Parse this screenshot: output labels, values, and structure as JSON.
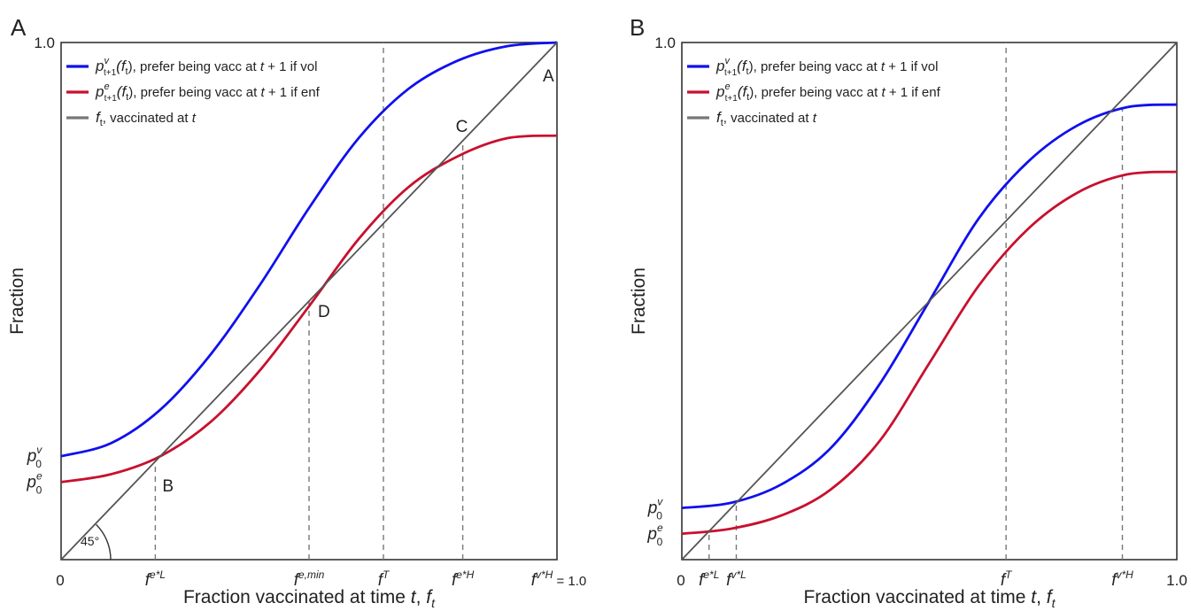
{
  "figure": {
    "panels": [
      "A",
      "B"
    ]
  },
  "colors": {
    "voluntary": "#1010ee",
    "enforced": "#c8102e",
    "diagonal": "#555555",
    "dashed": "#777777",
    "axis": "#333333"
  },
  "chart_data": [
    {
      "panel": "A",
      "type": "line",
      "xlabel": "Fraction vaccinated at time t, f_t",
      "ylabel": "Fraction",
      "xlim": [
        0,
        1
      ],
      "ylim": [
        0,
        1
      ],
      "y_top_tick": "1.0",
      "x_zero_tick": "0",
      "legend_position": "top-left",
      "series": [
        {
          "name": "p^v_{t+1}(f_t), prefer being vacc at t + 1 if vol",
          "key": "vol",
          "x": [
            0,
            0.1,
            0.2,
            0.3,
            0.4,
            0.5,
            0.6,
            0.7,
            0.8,
            0.9,
            1.0
          ],
          "y": [
            0.2,
            0.225,
            0.29,
            0.395,
            0.53,
            0.68,
            0.815,
            0.91,
            0.965,
            0.993,
            1.0
          ]
        },
        {
          "name": "p^e_{t+1}(f_t), prefer being vacc at t + 1 if enf",
          "key": "enf",
          "x": [
            0,
            0.1,
            0.2,
            0.3,
            0.4,
            0.5,
            0.6,
            0.7,
            0.8,
            0.9,
            1.0
          ],
          "y": [
            0.15,
            0.165,
            0.2,
            0.265,
            0.365,
            0.49,
            0.62,
            0.72,
            0.78,
            0.815,
            0.82
          ]
        },
        {
          "name": "f_t, vaccinated at t",
          "key": "diag",
          "x": [
            0,
            1
          ],
          "y": [
            0,
            1
          ]
        }
      ],
      "legend": [
        {
          "sym": "p",
          "sup": "v",
          "sub": "t+1",
          "arg": "(f",
          "argsub": "t",
          "close": "), prefer being vacc at ",
          "t1": "t",
          "rest": " + 1 if vol"
        },
        {
          "sym": "p",
          "sup": "e",
          "sub": "t+1",
          "arg": "(f",
          "argsub": "t",
          "close": "), prefer being vacc at ",
          "t1": "t",
          "rest": " + 1 if enf"
        },
        {
          "sym": "f",
          "sub": "t",
          "text": ", vaccinated at ",
          "t1": "t"
        }
      ],
      "vlines": [
        {
          "x": 0.19,
          "label": "f",
          "sup": "e*L"
        },
        {
          "x": 0.5,
          "label": "f",
          "sup": "e,min"
        },
        {
          "x": 0.65,
          "label": "f",
          "sup": "T"
        },
        {
          "x": 0.81,
          "label": "f",
          "sup": "e*H"
        }
      ],
      "right_tick": {
        "label": "f",
        "sup": "v*H",
        "suffix": "= 1.0"
      },
      "y_markers": [
        {
          "y": 0.2,
          "sym": "p",
          "sup": "v",
          "sub": "0"
        },
        {
          "y": 0.15,
          "sym": "p",
          "sup": "e",
          "sub": "0"
        }
      ],
      "points": [
        {
          "label": "A",
          "x": 1.0,
          "y": 1.0
        },
        {
          "label": "B",
          "x": 0.19,
          "y": 0.19
        },
        {
          "label": "C",
          "x": 0.81,
          "y": 0.81
        },
        {
          "label": "D",
          "x": 0.5,
          "y": 0.5
        }
      ],
      "angle_label": "45°"
    },
    {
      "panel": "B",
      "type": "line",
      "xlabel": "Fraction vaccinated at time t, f_t",
      "ylabel": "Fraction",
      "xlim": [
        0,
        1
      ],
      "ylim": [
        0,
        1
      ],
      "y_top_tick": "1.0",
      "x_zero_tick": "0",
      "x_one_tick": "1.0",
      "legend_position": "top-left",
      "series": [
        {
          "name": "p^v_{t+1}(f_t), prefer being vacc at t + 1 if vol",
          "key": "vol",
          "x": [
            0,
            0.1,
            0.2,
            0.3,
            0.4,
            0.5,
            0.6,
            0.7,
            0.8,
            0.9,
            1.0
          ],
          "y": [
            0.1,
            0.11,
            0.145,
            0.215,
            0.34,
            0.5,
            0.66,
            0.77,
            0.84,
            0.875,
            0.88
          ]
        },
        {
          "name": "p^e_{t+1}(f_t), prefer being vacc at t + 1 if enf",
          "key": "enf",
          "x": [
            0,
            0.1,
            0.2,
            0.3,
            0.4,
            0.5,
            0.6,
            0.7,
            0.8,
            0.9,
            1.0
          ],
          "y": [
            0.05,
            0.06,
            0.085,
            0.135,
            0.23,
            0.38,
            0.53,
            0.64,
            0.71,
            0.745,
            0.75
          ]
        },
        {
          "name": "f_t, vaccinated at t",
          "key": "diag",
          "x": [
            0,
            1
          ],
          "y": [
            0,
            1
          ]
        }
      ],
      "legend": [
        {
          "sym": "p",
          "sup": "v",
          "sub": "t+1",
          "arg": "(f",
          "argsub": "t",
          "close": "), prefer being vacc at ",
          "t1": "t",
          "rest": " + 1 if vol"
        },
        {
          "sym": "p",
          "sup": "e",
          "sub": "t+1",
          "arg": "(f",
          "argsub": "t",
          "close": "), prefer being vacc at ",
          "t1": "t",
          "rest": " + 1 if enf"
        },
        {
          "sym": "f",
          "sub": "t",
          "text": ", vaccinated at ",
          "t1": "t"
        }
      ],
      "vlines": [
        {
          "x": 0.055,
          "label": "f",
          "sup": "e*L"
        },
        {
          "x": 0.11,
          "label": "f",
          "sup": "v*L"
        },
        {
          "x": 0.655,
          "label": "f",
          "sup": "T"
        },
        {
          "x": 0.89,
          "label": "f",
          "sup": "v*H"
        }
      ],
      "y_markers": [
        {
          "y": 0.1,
          "sym": "p",
          "sup": "v",
          "sub": "0"
        },
        {
          "y": 0.05,
          "sym": "p",
          "sup": "e",
          "sub": "0"
        }
      ]
    }
  ]
}
